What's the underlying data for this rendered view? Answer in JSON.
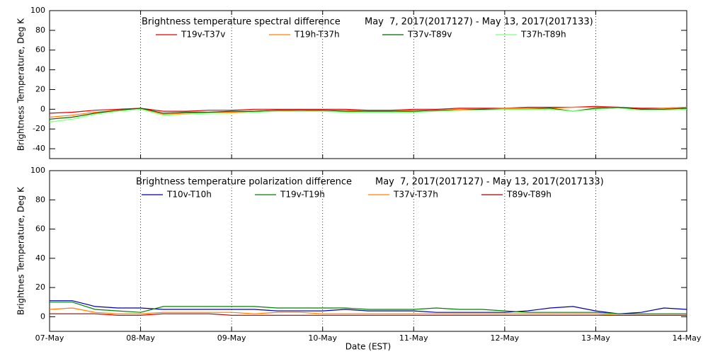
{
  "chart_data": [
    {
      "type": "line",
      "title": "Brightness temperature spectral difference",
      "subtitle": "May  7, 2017(2017127) - May 13, 2017(2017133)",
      "ylabel": "Brightness Temperature, Deg K",
      "xlim": [
        0,
        7
      ],
      "xticks": [
        0,
        1,
        2,
        3,
        4,
        5,
        6,
        7
      ],
      "ylim": [
        -50,
        100
      ],
      "yticks": [
        -40,
        -20,
        0,
        20,
        40,
        60,
        80,
        100
      ],
      "grid": true,
      "x": [
        0,
        0.25,
        0.5,
        0.75,
        1,
        1.25,
        1.5,
        1.75,
        2,
        2.25,
        2.5,
        2.75,
        3,
        3.25,
        3.5,
        3.75,
        4,
        4.25,
        4.5,
        4.75,
        5,
        5.25,
        5.5,
        5.75,
        6,
        6.25,
        6.5,
        6.75,
        7
      ],
      "series": [
        {
          "name": "T19v-T37v",
          "color": "#e00000",
          "values": [
            -4,
            -3,
            -1,
            0,
            1,
            -2,
            -2,
            -1,
            -1,
            0,
            0,
            0,
            0,
            0,
            -1,
            -1,
            0,
            0,
            1,
            1,
            1,
            2,
            2,
            2,
            3,
            2,
            1,
            1,
            2
          ]
        },
        {
          "name": "T19h-T37h",
          "color": "#ff8000",
          "values": [
            -8,
            -6,
            -3,
            -1,
            1,
            -5,
            -4,
            -3,
            -3,
            -2,
            -1,
            -2,
            -1,
            -1,
            -2,
            -2,
            -1,
            -1,
            0,
            0,
            1,
            1,
            1,
            2,
            2,
            2,
            0,
            1,
            2
          ]
        },
        {
          "name": "T37v-T89v",
          "color": "#006400",
          "values": [
            -10,
            -8,
            -4,
            -1,
            1,
            -4,
            -3,
            -3,
            -2,
            -2,
            -1,
            -1,
            -1,
            -2,
            -2,
            -2,
            -2,
            -1,
            -1,
            0,
            0,
            0,
            1,
            -2,
            1,
            2,
            0,
            0,
            1
          ]
        },
        {
          "name": "T37h-T89h",
          "color": "#80ff80",
          "values": [
            -13,
            -10,
            -5,
            -2,
            0,
            -6,
            -5,
            -4,
            -4,
            -3,
            -2,
            -2,
            -2,
            -3,
            -3,
            -3,
            -3,
            -2,
            -1,
            -1,
            0,
            0,
            0,
            -2,
            0,
            1,
            -1,
            -1,
            0
          ]
        }
      ]
    },
    {
      "type": "line",
      "title": "Brightness temperature polarization difference",
      "subtitle": "May  7, 2017(2017127) - May 13, 2017(2017133)",
      "ylabel": "Brightnes Temperature, Deg K",
      "xlabel": "Date (EST)",
      "xlim": [
        0,
        7
      ],
      "xticks": [
        {
          "value": 0,
          "label": "07-May"
        },
        {
          "value": 1,
          "label": "08-May"
        },
        {
          "value": 2,
          "label": "09-May"
        },
        {
          "value": 3,
          "label": "10-May"
        },
        {
          "value": 4,
          "label": "11-May"
        },
        {
          "value": 5,
          "label": "12-May"
        },
        {
          "value": 6,
          "label": "13-May"
        },
        {
          "value": 7,
          "label": "14-May"
        }
      ],
      "ylim": [
        -10,
        100
      ],
      "yticks": [
        0,
        20,
        40,
        60,
        80,
        100
      ],
      "grid": true,
      "x": [
        0,
        0.25,
        0.5,
        0.75,
        1,
        1.25,
        1.5,
        1.75,
        2,
        2.25,
        2.5,
        2.75,
        3,
        3.25,
        3.5,
        3.75,
        4,
        4.25,
        4.5,
        4.75,
        5,
        5.25,
        5.5,
        5.75,
        6,
        6.25,
        6.5,
        6.75,
        7
      ],
      "series": [
        {
          "name": "T10v-T10h",
          "color": "#0000a0",
          "values": [
            11,
            11,
            7,
            6,
            6,
            5,
            5,
            5,
            5,
            5,
            4,
            4,
            4,
            5,
            4,
            4,
            4,
            3,
            3,
            3,
            3,
            4,
            6,
            7,
            4,
            2,
            3,
            6,
            5
          ]
        },
        {
          "name": "T19v-T19h",
          "color": "#008000",
          "values": [
            10,
            10,
            5,
            4,
            3,
            7,
            7,
            7,
            7,
            7,
            6,
            6,
            6,
            6,
            5,
            5,
            5,
            6,
            5,
            5,
            4,
            3,
            3,
            3,
            3,
            2,
            2,
            2,
            2
          ]
        },
        {
          "name": "T37v-T37h",
          "color": "#ff8000",
          "values": [
            5,
            6,
            3,
            2,
            2,
            3,
            3,
            3,
            3,
            2,
            3,
            3,
            2,
            2,
            2,
            2,
            2,
            2,
            2,
            2,
            2,
            2,
            2,
            2,
            2,
            1,
            1,
            1,
            1
          ]
        },
        {
          "name": "T89v-T89h",
          "color": "#a00000",
          "values": [
            2,
            2,
            2,
            1,
            1,
            2,
            2,
            2,
            1,
            1,
            1,
            1,
            1,
            1,
            1,
            1,
            1,
            1,
            1,
            1,
            1,
            1,
            1,
            1,
            1,
            1,
            1,
            1,
            1
          ]
        }
      ]
    }
  ]
}
